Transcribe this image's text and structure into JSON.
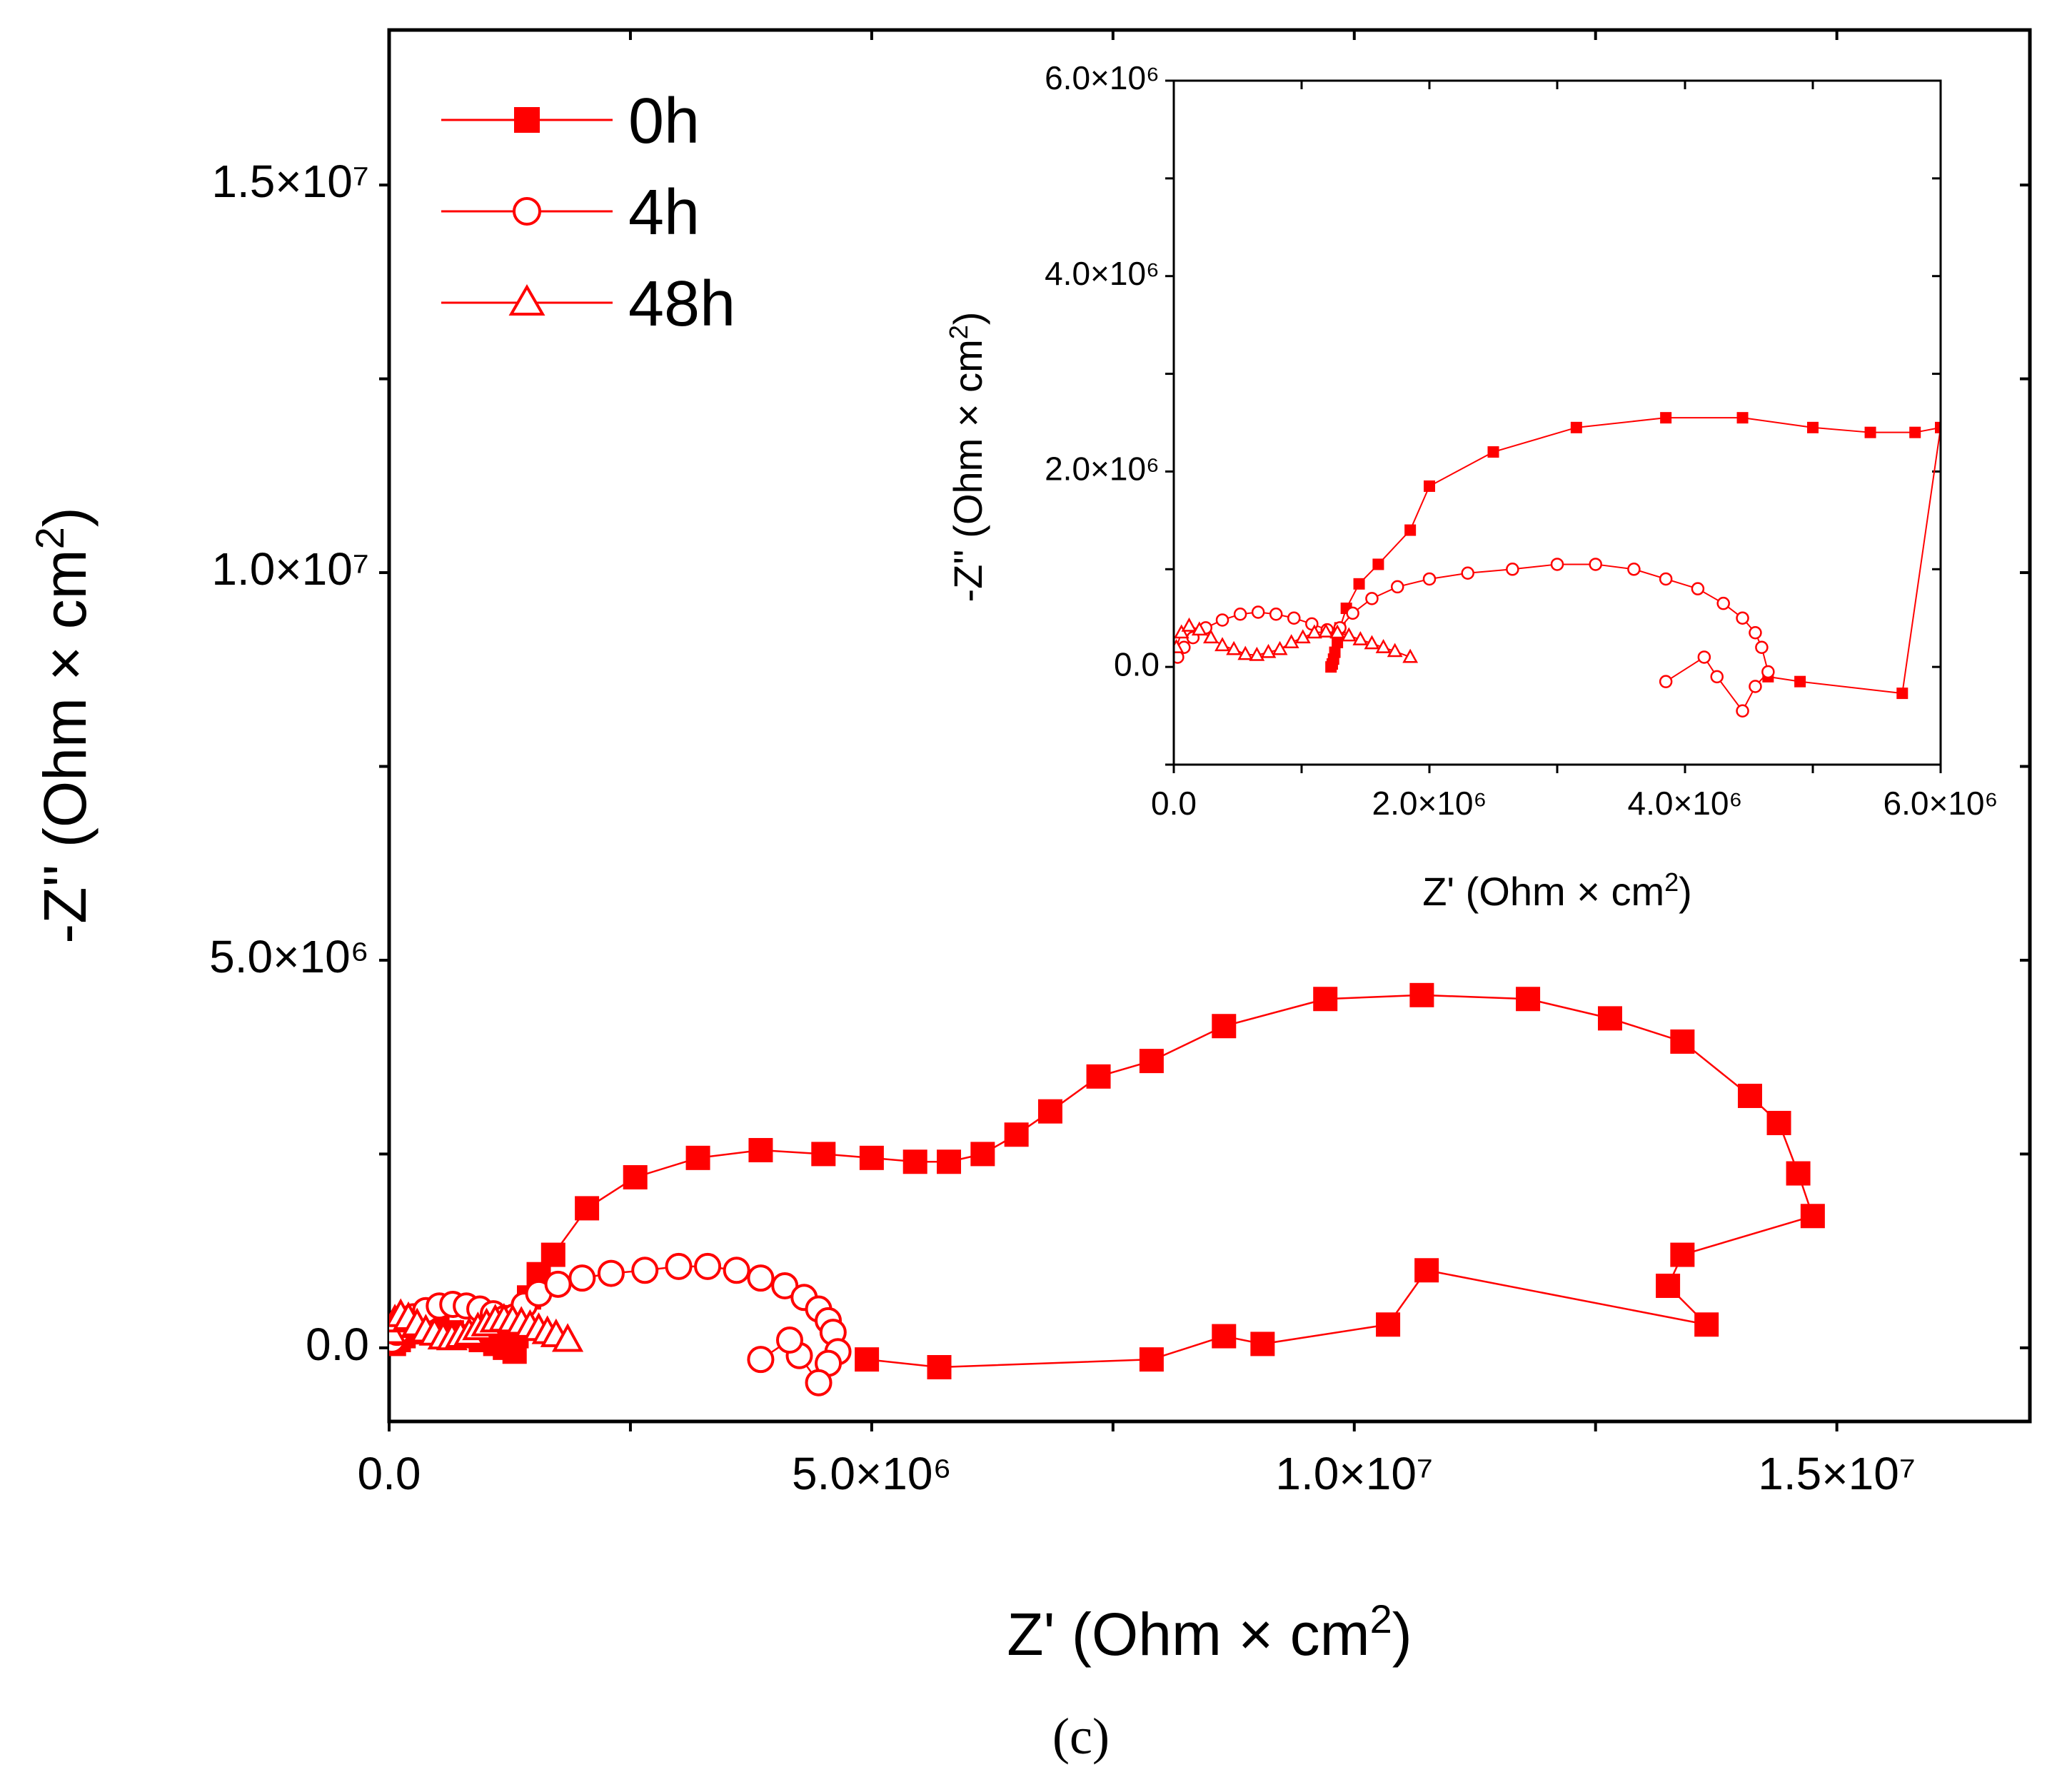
{
  "caption": "(c)",
  "series_color": "#ff0000",
  "chart_data": [
    {
      "id": "main",
      "type": "scatter",
      "xlabel": "Z' (Ohm × cm²)",
      "ylabel": "-Z'' (Ohm × cm²)",
      "xlim": [
        0,
        17000000
      ],
      "ylim": [
        -950000,
        17000000
      ],
      "xticks": [
        {
          "v": 0,
          "t": "0.0"
        },
        {
          "v": 5000000,
          "t": "5.0×10⁶"
        },
        {
          "v": 10000000,
          "t": "1.0×10⁷"
        },
        {
          "v": 15000000,
          "t": "1.5×10⁷"
        }
      ],
      "yticks": [
        {
          "v": 0,
          "t": "0.0"
        },
        {
          "v": 5000000,
          "t": "5.0×10⁶"
        },
        {
          "v": 10000000,
          "t": "1.0×10⁷"
        },
        {
          "v": 15000000,
          "t": "1.5×10⁷"
        }
      ],
      "legend": [
        "0h",
        "4h",
        "48h"
      ],
      "legend_position": "top-left",
      "series": [
        {
          "name": "0h",
          "marker": "square-filled",
          "x": [
            50000,
            100000,
            150000,
            250000,
            350000,
            500000,
            650000,
            800000,
            950000,
            1100000,
            1200000,
            1300000,
            1320000,
            1350000,
            1450000,
            1550000,
            1700000,
            2050000,
            2550000,
            3200000,
            3850000,
            4500000,
            5000000,
            5450000,
            5800000,
            6150000,
            6500000,
            6850000,
            7350000,
            7900000,
            8650000,
            9700000,
            10700000,
            11800000,
            12650000,
            13400000,
            14100000,
            14400000,
            14600000,
            14750000,
            13400000,
            13250000,
            13650000,
            10750000,
            10350000,
            9050000,
            8650000,
            7900000,
            5700000,
            4950000
          ],
          "y": [
            50000,
            100000,
            150000,
            200000,
            250000,
            250000,
            200000,
            150000,
            100000,
            50000,
            0,
            -50000,
            150000,
            350000,
            650000,
            950000,
            1200000,
            1800000,
            2200000,
            2450000,
            2550000,
            2500000,
            2450000,
            2400000,
            2400000,
            2500000,
            2750000,
            3050000,
            3500000,
            3700000,
            4150000,
            4500000,
            4550000,
            4500000,
            4250000,
            3950000,
            3250000,
            2900000,
            2250000,
            1700000,
            1200000,
            800000,
            300000,
            1000000,
            300000,
            50000,
            150000,
            -150000,
            -250000,
            -150000
          ]
        },
        {
          "name": "4h",
          "marker": "circle-open",
          "x": [
            30000,
            80000,
            150000,
            250000,
            380000,
            520000,
            660000,
            800000,
            940000,
            1080000,
            1200000,
            1300000,
            1400000,
            1550000,
            1750000,
            2000000,
            2300000,
            2650000,
            3000000,
            3300000,
            3600000,
            3850000,
            4100000,
            4300000,
            4450000,
            4550000,
            4600000,
            4650000,
            4550000,
            4450000,
            4250000,
            4150000,
            3850000
          ],
          "y": [
            100000,
            200000,
            300000,
            400000,
            480000,
            540000,
            560000,
            540000,
            500000,
            440000,
            380000,
            400000,
            550000,
            700000,
            820000,
            900000,
            960000,
            1000000,
            1050000,
            1050000,
            1000000,
            900000,
            800000,
            650000,
            500000,
            350000,
            200000,
            -50000,
            -200000,
            -450000,
            -100000,
            100000,
            -150000
          ]
        },
        {
          "name": "48h",
          "marker": "triangle-open",
          "x": [
            20000,
            60000,
            120000,
            200000,
            290000,
            380000,
            470000,
            560000,
            650000,
            740000,
            830000,
            920000,
            1010000,
            1100000,
            1190000,
            1280000,
            1370000,
            1460000,
            1550000,
            1640000,
            1730000,
            1850000
          ],
          "y": [
            200000,
            350000,
            420000,
            380000,
            300000,
            220000,
            180000,
            130000,
            120000,
            150000,
            180000,
            250000,
            300000,
            350000,
            360000,
            350000,
            320000,
            280000,
            240000,
            200000,
            160000,
            100000
          ]
        }
      ]
    },
    {
      "id": "inset",
      "type": "scatter",
      "xlabel": "Z' (Ohm × cm²)",
      "ylabel": "-Z'' (Ohm × cm²)",
      "xlim": [
        0,
        6000000
      ],
      "ylim": [
        -1000000,
        6000000
      ],
      "xticks": [
        {
          "v": 0,
          "t": "0.0"
        },
        {
          "v": 2000000,
          "t": "2.0×10⁶"
        },
        {
          "v": 4000000,
          "t": "4.0×10⁶"
        },
        {
          "v": 6000000,
          "t": "6.0×10⁶"
        }
      ],
      "yticks": [
        {
          "v": 0,
          "t": "0.0"
        },
        {
          "v": 2000000,
          "t": "2.0×10⁶"
        },
        {
          "v": 4000000,
          "t": "4.0×10⁶"
        },
        {
          "v": 6000000,
          "t": "6.0×10⁶"
        }
      ],
      "series": [
        {
          "name": "0h",
          "marker": "square-filled",
          "x": [
            1230000,
            1240000,
            1250000,
            1260000,
            1280000,
            1300000,
            1350000,
            1450000,
            1600000,
            1850000,
            2000000,
            2500000,
            3150000,
            3850000,
            4450000,
            5000000,
            5450000,
            5800000,
            6000000,
            5700000,
            4900000,
            4650000
          ],
          "y": [
            0,
            30000,
            80000,
            150000,
            250000,
            400000,
            600000,
            850000,
            1050000,
            1400000,
            1850000,
            2200000,
            2450000,
            2550000,
            2550000,
            2450000,
            2400000,
            2400000,
            2450000,
            -270000,
            -150000,
            -100000
          ]
        },
        {
          "name": "4h",
          "marker": "circle-open",
          "x": [
            30000,
            80000,
            150000,
            250000,
            380000,
            520000,
            660000,
            800000,
            940000,
            1080000,
            1200000,
            1300000,
            1400000,
            1550000,
            1750000,
            2000000,
            2300000,
            2650000,
            3000000,
            3300000,
            3600000,
            3850000,
            4100000,
            4300000,
            4450000,
            4550000,
            4600000,
            4650000,
            4550000,
            4450000,
            4250000,
            4150000,
            3850000
          ],
          "y": [
            100000,
            200000,
            300000,
            400000,
            480000,
            540000,
            560000,
            540000,
            500000,
            440000,
            380000,
            400000,
            550000,
            700000,
            820000,
            900000,
            960000,
            1000000,
            1050000,
            1050000,
            1000000,
            900000,
            800000,
            650000,
            500000,
            350000,
            200000,
            -50000,
            -200000,
            -450000,
            -100000,
            100000,
            -150000
          ]
        },
        {
          "name": "48h",
          "marker": "triangle-open",
          "x": [
            20000,
            60000,
            120000,
            200000,
            290000,
            380000,
            470000,
            560000,
            650000,
            740000,
            830000,
            920000,
            1010000,
            1100000,
            1190000,
            1280000,
            1370000,
            1460000,
            1550000,
            1640000,
            1730000,
            1850000
          ],
          "y": [
            200000,
            350000,
            420000,
            380000,
            300000,
            220000,
            180000,
            130000,
            120000,
            150000,
            180000,
            250000,
            300000,
            350000,
            360000,
            350000,
            320000,
            280000,
            240000,
            200000,
            160000,
            100000
          ]
        }
      ]
    }
  ]
}
